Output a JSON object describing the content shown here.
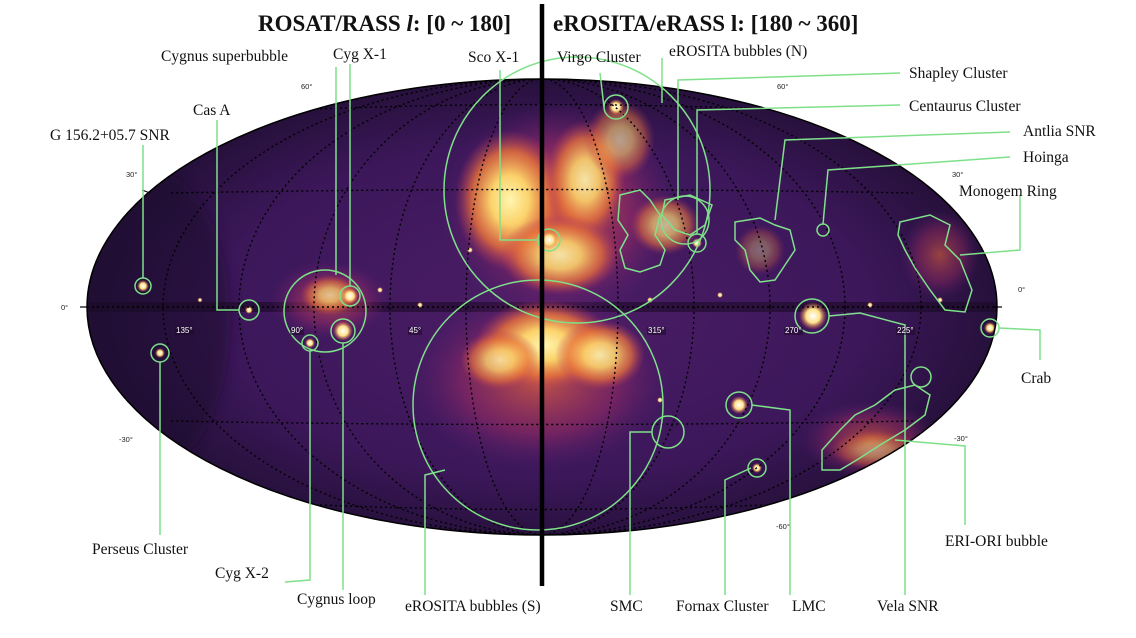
{
  "titles": {
    "left_prefix": "ROSAT/RASS ",
    "left_italic": "l",
    "left_suffix": ": [0 ~ 180]",
    "right": "eROSITA/eRASS l: [180 ~ 360]"
  },
  "grid_labels": {
    "lat_left": [
      "60°",
      "30°",
      "0°",
      "-30°"
    ],
    "lat_right": [
      "60°",
      "30°",
      "0°",
      "-30°",
      "-60°"
    ],
    "lon": [
      "135°",
      "90°",
      "45°",
      "315°",
      "270°",
      "225°"
    ]
  },
  "annotations": [
    {
      "id": "g156",
      "label": "G 156.2+05.7 SNR"
    },
    {
      "id": "cas-a",
      "label": "Cas A"
    },
    {
      "id": "cygnus-superbubble",
      "label": "Cygnus superbubble"
    },
    {
      "id": "cyg-x1",
      "label": "Cyg X-1"
    },
    {
      "id": "sco-x1",
      "label": "Sco X-1"
    },
    {
      "id": "virgo",
      "label": "Virgo Cluster"
    },
    {
      "id": "erosita-n",
      "label": "eROSITA bubbles (N)"
    },
    {
      "id": "shapley",
      "label": "Shapley Cluster"
    },
    {
      "id": "centaurus",
      "label": "Centaurus Cluster"
    },
    {
      "id": "antlia",
      "label": "Antlia SNR"
    },
    {
      "id": "hoinga",
      "label": "Hoinga"
    },
    {
      "id": "monogem",
      "label": "Monogem Ring"
    },
    {
      "id": "crab",
      "label": "Crab"
    },
    {
      "id": "eri-ori",
      "label": "ERI-ORI bubble"
    },
    {
      "id": "perseus",
      "label": "Perseus Cluster"
    },
    {
      "id": "cyg-x2",
      "label": "Cyg X-2"
    },
    {
      "id": "cygnus-loop",
      "label": "Cygnus loop"
    },
    {
      "id": "erosita-s",
      "label": "eROSITA bubbles (S)"
    },
    {
      "id": "smc",
      "label": "SMC"
    },
    {
      "id": "fornax",
      "label": "Fornax Cluster"
    },
    {
      "id": "lmc",
      "label": "LMC"
    },
    {
      "id": "vela",
      "label": "Vela SNR"
    }
  ],
  "colors": {
    "background_sky": "#3a1657",
    "accent_green": "#7fe08a",
    "divider": "#000000"
  }
}
